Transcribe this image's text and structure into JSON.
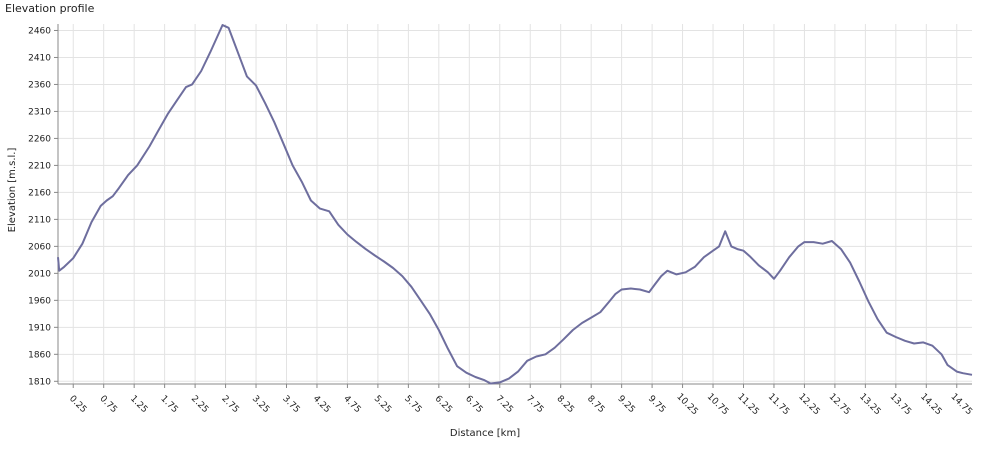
{
  "chart_data": {
    "type": "line",
    "title": "Elevation profile",
    "xlabel": "Distance [km]",
    "ylabel": "Elevation [m.s.l.]",
    "xlim": [
      0,
      15
    ],
    "ylim": [
      1805,
      2472
    ],
    "grid": true,
    "x_ticks": [
      0.25,
      0.75,
      1.25,
      1.75,
      2.25,
      2.75,
      3.25,
      3.75,
      4.25,
      4.75,
      5.25,
      5.75,
      6.25,
      6.75,
      7.25,
      7.75,
      8.25,
      8.75,
      9.25,
      9.75,
      10.25,
      10.75,
      11.25,
      11.75,
      12.25,
      12.75,
      13.25,
      13.75,
      14.25,
      14.75
    ],
    "y_ticks": [
      1810,
      1860,
      1910,
      1960,
      2010,
      2060,
      2110,
      2160,
      2210,
      2260,
      2310,
      2360,
      2410,
      2460
    ],
    "series": [
      {
        "color": "#6e6e9e",
        "x": [
          0,
          0.02,
          0.1,
          0.25,
          0.4,
          0.55,
          0.7,
          0.8,
          0.9,
          1.0,
          1.15,
          1.3,
          1.5,
          1.65,
          1.8,
          1.95,
          2.1,
          2.2,
          2.35,
          2.5,
          2.6,
          2.7,
          2.8,
          2.9,
          3.0,
          3.1,
          3.25,
          3.4,
          3.55,
          3.7,
          3.85,
          4.0,
          4.15,
          4.3,
          4.45,
          4.6,
          4.75,
          4.9,
          5.05,
          5.2,
          5.35,
          5.5,
          5.65,
          5.8,
          5.95,
          6.1,
          6.25,
          6.4,
          6.55,
          6.7,
          6.85,
          7.0,
          7.1,
          7.25,
          7.4,
          7.55,
          7.7,
          7.85,
          8.0,
          8.15,
          8.3,
          8.45,
          8.6,
          8.75,
          8.9,
          9.05,
          9.15,
          9.25,
          9.4,
          9.55,
          9.7,
          9.8,
          9.9,
          10.0,
          10.15,
          10.3,
          10.45,
          10.6,
          10.75,
          10.85,
          10.95,
          11.05,
          11.15,
          11.25,
          11.35,
          11.5,
          11.65,
          11.75,
          11.85,
          12.0,
          12.15,
          12.25,
          12.4,
          12.55,
          12.7,
          12.85,
          13.0,
          13.15,
          13.3,
          13.45,
          13.6,
          13.75,
          13.9,
          14.05,
          14.2,
          14.35,
          14.5,
          14.6,
          14.75,
          14.85,
          15.0
        ],
        "y": [
          2040,
          2015,
          2022,
          2038,
          2065,
          2105,
          2135,
          2145,
          2153,
          2168,
          2192,
          2210,
          2245,
          2275,
          2305,
          2330,
          2355,
          2360,
          2385,
          2420,
          2445,
          2470,
          2465,
          2435,
          2405,
          2375,
          2358,
          2325,
          2290,
          2250,
          2210,
          2180,
          2145,
          2130,
          2125,
          2100,
          2082,
          2068,
          2055,
          2043,
          2032,
          2020,
          2005,
          1985,
          1960,
          1935,
          1905,
          1870,
          1838,
          1826,
          1818,
          1812,
          1806,
          1808,
          1815,
          1828,
          1848,
          1856,
          1860,
          1872,
          1888,
          1905,
          1918,
          1928,
          1938,
          1958,
          1972,
          1980,
          1982,
          1980,
          1975,
          1990,
          2005,
          2015,
          2008,
          2012,
          2022,
          2040,
          2052,
          2060,
          2088,
          2060,
          2055,
          2052,
          2042,
          2025,
          2012,
          2000,
          2015,
          2040,
          2060,
          2068,
          2068,
          2065,
          2070,
          2055,
          2030,
          1995,
          1958,
          1925,
          1900,
          1892,
          1885,
          1880,
          1882,
          1876,
          1860,
          1840,
          1828,
          1825,
          1822
        ]
      }
    ]
  }
}
